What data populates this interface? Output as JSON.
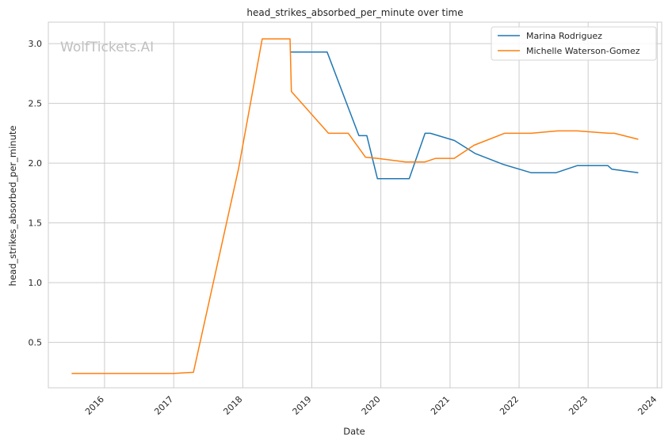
{
  "watermark": "WolfTickets.AI",
  "chart_data": {
    "type": "line",
    "title": "head_strikes_absorbed_per_minute over time",
    "xlabel": "Date",
    "ylabel": "head_strikes_absorbed_per_minute",
    "x_ticks": [
      "2016",
      "2017",
      "2018",
      "2019",
      "2020",
      "2021",
      "2022",
      "2023",
      "2024"
    ],
    "y_ticks": [
      "0.5",
      "1.0",
      "1.5",
      "2.0",
      "2.5",
      "3.0"
    ],
    "xlim": [
      "2015-03-10",
      "2024-01-25"
    ],
    "ylim": [
      0.12,
      3.18
    ],
    "grid": true,
    "legend_position": "top-right",
    "series": [
      {
        "name": "Marina Rodriguez",
        "color": "#1f77b4",
        "points": [
          [
            "2018-09-08",
            2.93
          ],
          [
            "2019-03-23",
            2.93
          ],
          [
            "2019-09-07",
            2.23
          ],
          [
            "2019-10-19",
            2.23
          ],
          [
            "2019-12-14",
            1.87
          ],
          [
            "2020-05-30",
            1.87
          ],
          [
            "2020-08-22",
            2.25
          ],
          [
            "2020-09-19",
            2.25
          ],
          [
            "2021-01-24",
            2.19
          ],
          [
            "2021-05-15",
            2.08
          ],
          [
            "2021-10-09",
            1.99
          ],
          [
            "2022-03-05",
            1.92
          ],
          [
            "2022-07-16",
            1.92
          ],
          [
            "2022-11-05",
            1.98
          ],
          [
            "2023-04-15",
            1.98
          ],
          [
            "2023-05-06",
            1.95
          ],
          [
            "2023-09-23",
            1.92
          ]
        ]
      },
      {
        "name": "Michelle Waterson-Gomez",
        "color": "#ff7f0e",
        "points": [
          [
            "2015-07-11",
            0.24
          ],
          [
            "2016-03-01",
            0.24
          ],
          [
            "2016-12-30",
            0.24
          ],
          [
            "2017-04-15",
            0.25
          ],
          [
            "2017-12-09",
            1.95
          ],
          [
            "2018-04-14",
            3.04
          ],
          [
            "2018-09-08",
            3.04
          ],
          [
            "2018-09-15",
            2.6
          ],
          [
            "2019-03-30",
            2.25
          ],
          [
            "2019-07-13",
            2.25
          ],
          [
            "2019-10-12",
            2.05
          ],
          [
            "2019-12-14",
            2.04
          ],
          [
            "2020-05-09",
            2.01
          ],
          [
            "2020-08-22",
            2.01
          ],
          [
            "2020-10-17",
            2.04
          ],
          [
            "2021-01-23",
            2.04
          ],
          [
            "2021-05-08",
            2.15
          ],
          [
            "2021-10-16",
            2.25
          ],
          [
            "2022-03-05",
            2.25
          ],
          [
            "2022-07-23",
            2.27
          ],
          [
            "2022-11-05",
            2.27
          ],
          [
            "2023-04-22",
            2.25
          ],
          [
            "2023-05-20",
            2.25
          ],
          [
            "2023-09-23",
            2.2
          ]
        ]
      }
    ]
  }
}
